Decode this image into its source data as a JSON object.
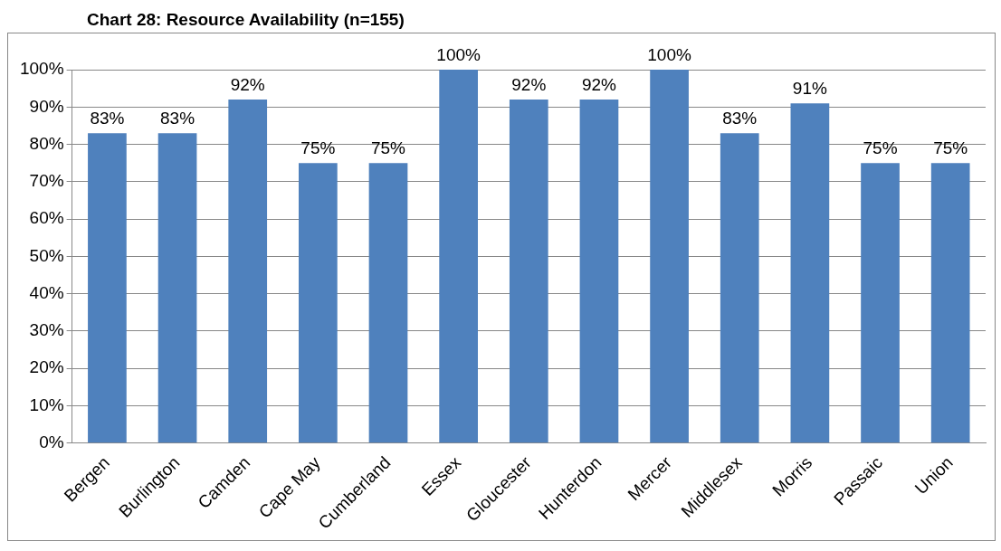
{
  "chart_data": {
    "type": "bar",
    "title": "Chart 28: Resource Availability (n=155)",
    "categories": [
      "Bergen",
      "Burlington",
      "Camden",
      "Cape May",
      "Cumberland",
      "Essex",
      "Gloucester",
      "Hunterdon",
      "Mercer",
      "Middlesex",
      "Morris",
      "Passaic",
      "Union"
    ],
    "values": [
      83,
      83,
      92,
      75,
      75,
      100,
      92,
      92,
      100,
      83,
      91,
      75,
      75
    ],
    "value_labels": [
      "83%",
      "83%",
      "92%",
      "75%",
      "75%",
      "100%",
      "92%",
      "92%",
      "100%",
      "83%",
      "91%",
      "75%",
      "75%"
    ],
    "color": "#4f81bd",
    "ylim": [
      0,
      100
    ],
    "yticks": [
      {
        "value": 0,
        "label": "0%"
      },
      {
        "value": 10,
        "label": "10%"
      },
      {
        "value": 20,
        "label": "20%"
      },
      {
        "value": 30,
        "label": "30%"
      },
      {
        "value": 40,
        "label": "40%"
      },
      {
        "value": 50,
        "label": "50%"
      },
      {
        "value": 60,
        "label": "60%"
      },
      {
        "value": 70,
        "label": "70%"
      },
      {
        "value": 80,
        "label": "80%"
      },
      {
        "value": 90,
        "label": "90%"
      },
      {
        "value": 100,
        "label": "100%"
      }
    ],
    "grid": "y"
  }
}
